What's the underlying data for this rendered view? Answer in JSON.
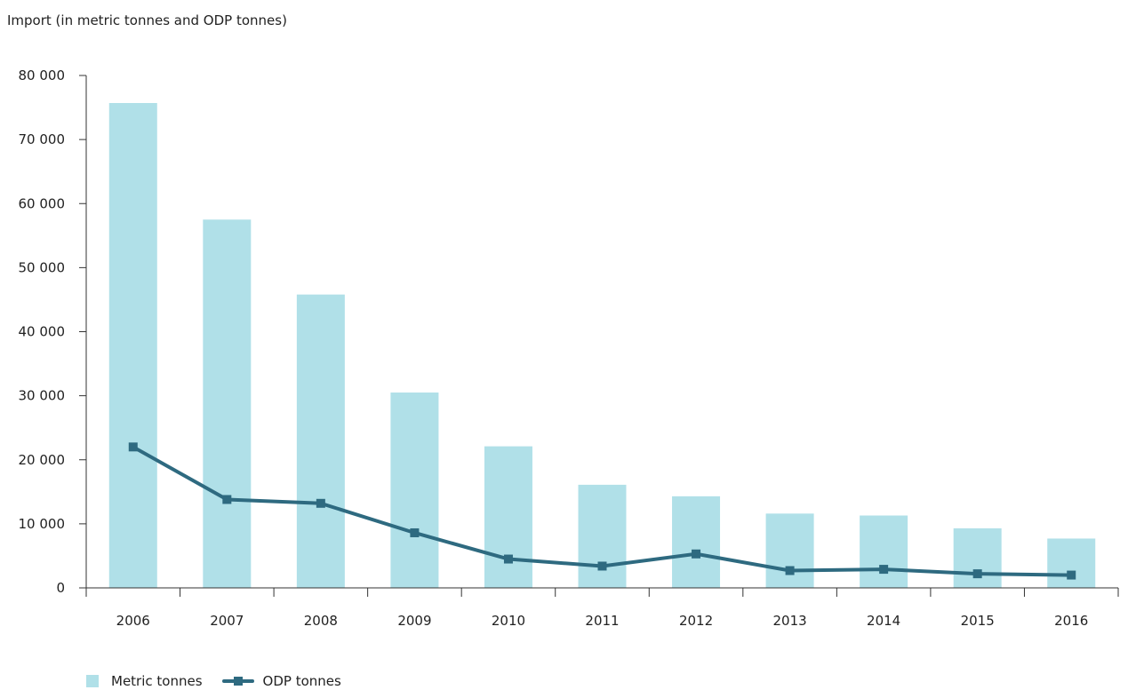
{
  "chart_data": {
    "type": "bar",
    "title": "Import (in metric tonnes and ODP tonnes)",
    "xlabel": "",
    "ylabel": "",
    "categories": [
      "2006",
      "2007",
      "2008",
      "2009",
      "2010",
      "2011",
      "2012",
      "2013",
      "2014",
      "2015",
      "2016"
    ],
    "series": [
      {
        "name": "Metric tonnes",
        "kind": "bar",
        "color": "#b0e0e8",
        "values": [
          75700,
          57500,
          45800,
          30500,
          22100,
          16100,
          14300,
          11600,
          11300,
          9300,
          7700
        ]
      },
      {
        "name": "ODP tonnes",
        "kind": "line",
        "marker": "square",
        "color": "#2e6a80",
        "values": [
          22000,
          13800,
          13200,
          8600,
          4500,
          3400,
          5300,
          2700,
          2900,
          2200,
          2000
        ]
      }
    ],
    "ylim": [
      0,
      80000
    ],
    "yticks": [
      0,
      10000,
      20000,
      30000,
      40000,
      50000,
      60000,
      70000,
      80000
    ],
    "ytick_labels": [
      "0",
      "10 000",
      "20 000",
      "30 000",
      "40 000",
      "50 000",
      "60 000",
      "70 000",
      "80 000"
    ],
    "grid": false,
    "legend_position": "bottom-left"
  }
}
